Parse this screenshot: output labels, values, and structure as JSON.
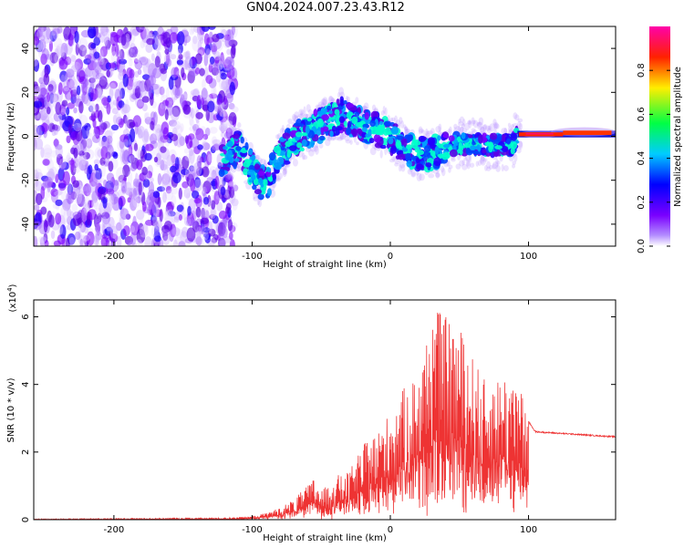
{
  "title": "GN04.2024.007.23.43.R12",
  "chart_data": [
    {
      "type": "heatmap",
      "name": "spectrogram",
      "xlabel": "Height of straight line (km)",
      "ylabel": "Frequency (Hz)",
      "xlim": [
        -258,
        163
      ],
      "ylim": [
        -50,
        50
      ],
      "xticks": [
        -200,
        -100,
        0,
        100
      ],
      "yticks": [
        -40,
        -20,
        0,
        20,
        40
      ],
      "colorbar": {
        "label": "Normalized spectral amplitude",
        "range": [
          0,
          1
        ],
        "ticks": [
          "0.0",
          "0.2",
          "0.4",
          "0.6",
          "0.8"
        ],
        "colormap": "rainbow (violet-blue-cyan-green-yellow-red-magenta)"
      },
      "ridge": {
        "x": [
          -120,
          -110,
          -100,
          -95,
          -90,
          -85,
          -80,
          -75,
          -70,
          -60,
          -50,
          -40,
          -35,
          -30,
          -25,
          -20,
          -10,
          0,
          10,
          20,
          30,
          40,
          50,
          60,
          70,
          80,
          88,
          92,
          100,
          130,
          163
        ],
        "y": [
          -10,
          -5,
          -15,
          -20,
          -22,
          -15,
          -8,
          -5,
          -2,
          2,
          5,
          8,
          10,
          8,
          6,
          5,
          3,
          0,
          -5,
          -8,
          -8,
          -5,
          -3,
          -4,
          -4,
          -4,
          -4,
          0,
          1,
          1,
          2
        ]
      }
    },
    {
      "type": "line",
      "name": "snr",
      "xlabel": "Height of straight line (km)",
      "ylabel": "SNR (10 * v/v)",
      "y_multiplier": "(x10",
      "y_multiplier_exp": "4",
      "y_multiplier_close": ")",
      "xlim": [
        -258,
        163
      ],
      "ylim": [
        0,
        6.5
      ],
      "xticks": [
        -200,
        -100,
        0,
        100
      ],
      "yticks": [
        0,
        2,
        4,
        6
      ],
      "color": "#ee3333",
      "envelope": {
        "x": [
          -258,
          -120,
          -100,
          -90,
          -80,
          -70,
          -60,
          -55,
          -50,
          -45,
          -40,
          -30,
          -20,
          -10,
          0,
          10,
          20,
          25,
          30,
          40,
          50,
          60,
          70,
          80,
          90,
          95,
          100,
          105,
          163
        ],
        "y": [
          0.02,
          0.05,
          0.1,
          0.2,
          0.35,
          0.6,
          1.0,
          1.25,
          0.9,
          1.0,
          1.3,
          1.4,
          2.2,
          2.6,
          3.2,
          3.9,
          4.4,
          5.0,
          6.4,
          6.0,
          5.7,
          4.8,
          4.0,
          4.3,
          4.4,
          3.8,
          2.9,
          2.6,
          2.45
        ]
      }
    }
  ]
}
